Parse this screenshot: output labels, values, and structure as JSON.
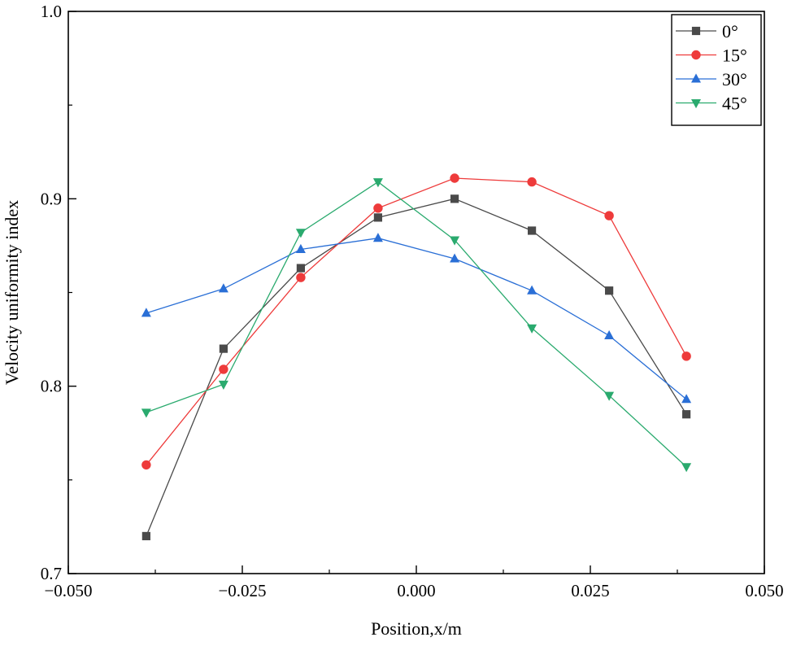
{
  "chart_data": {
    "type": "line",
    "title": "",
    "xlabel": "Position,x/m",
    "ylabel": "Velocity uniformity index",
    "xlim": [
      -0.05,
      0.05
    ],
    "ylim": [
      0.7,
      1.0
    ],
    "xticks": [
      -0.05,
      -0.025,
      0.0,
      0.025,
      0.05
    ],
    "xtick_labels": [
      "−0.050",
      "−0.025",
      "0.000",
      "0.025",
      "0.050"
    ],
    "yticks": [
      0.7,
      0.8,
      0.9,
      1.0
    ],
    "ytick_labels": [
      "0.7",
      "0.8",
      "0.9",
      "1.0"
    ],
    "grid": false,
    "legend_position": "top-right",
    "x": [
      -0.0388,
      -0.0277,
      -0.0166,
      -0.0055,
      0.0055,
      0.0166,
      0.0277,
      0.0388
    ],
    "series": [
      {
        "name": "0°",
        "color": "#4a4a4a",
        "marker": "square",
        "values": [
          0.72,
          0.82,
          0.863,
          0.89,
          0.9,
          0.883,
          0.851,
          0.785
        ]
      },
      {
        "name": "15°",
        "color": "#ee3b3b",
        "marker": "circle",
        "values": [
          0.758,
          0.809,
          0.858,
          0.895,
          0.911,
          0.909,
          0.891,
          0.816
        ]
      },
      {
        "name": "30°",
        "color": "#2a6fd6",
        "marker": "triangle-up",
        "values": [
          0.839,
          0.852,
          0.873,
          0.879,
          0.868,
          0.851,
          0.827,
          0.793
        ]
      },
      {
        "name": "45°",
        "color": "#2aaa6e",
        "marker": "triangle-down",
        "values": [
          0.786,
          0.801,
          0.882,
          0.909,
          0.878,
          0.831,
          0.795,
          0.757
        ]
      }
    ]
  }
}
